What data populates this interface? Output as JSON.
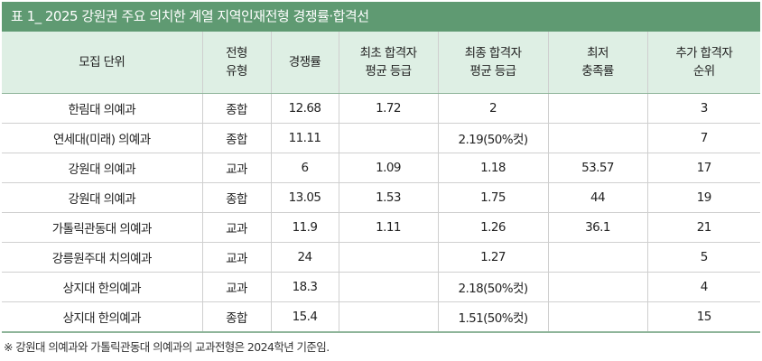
{
  "title": "표 1_ 2025 강원권 주요 의치한 계열 지역인재전형 경쟁률·합격선",
  "columns": [
    {
      "line1": "모집 단위",
      "line2": ""
    },
    {
      "line1": "전형",
      "line2": "유형"
    },
    {
      "line1": "경쟁률",
      "line2": ""
    },
    {
      "line1": "최초 합격자",
      "line2": "평균 등급"
    },
    {
      "line1": "최종 합격자",
      "line2": "평균 등급"
    },
    {
      "line1": "최저",
      "line2": "충족률"
    },
    {
      "line1": "추가 합격자",
      "line2": "순위"
    }
  ],
  "rows": [
    [
      "한림대 의예과",
      "종합",
      "12.68",
      "1.72",
      "2",
      "",
      "3"
    ],
    [
      "연세대(미래) 의예과",
      "종합",
      "11.11",
      "",
      "2.19(50%컷)",
      "",
      "7"
    ],
    [
      "강원대 의예과",
      "교과",
      "6",
      "1.09",
      "1.18",
      "53.57",
      "17"
    ],
    [
      "강원대 의예과",
      "종합",
      "13.05",
      "1.53",
      "1.75",
      "44",
      "19"
    ],
    [
      "가톨릭관동대 의예과",
      "교과",
      "11.9",
      "1.11",
      "1.26",
      "36.1",
      "21"
    ],
    [
      "강릉원주대 치의예과",
      "교과",
      "24",
      "",
      "1.27",
      "",
      "5"
    ],
    [
      "상지대 한의예과",
      "교과",
      "18.3",
      "",
      "2.18(50%컷)",
      "",
      "4"
    ],
    [
      "상지대 한의예과",
      "종합",
      "15.4",
      "",
      "1.51(50%컷)",
      "",
      "15"
    ]
  ],
  "footnote": "※ 강원대 의예과와 가톨릭관동대 의예과의 교과전형은 2024학년 기준임."
}
